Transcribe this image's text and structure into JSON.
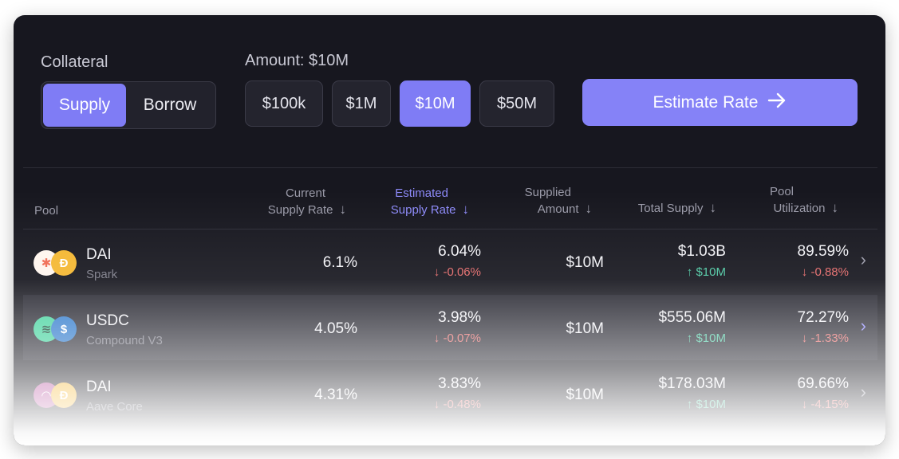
{
  "collateral": {
    "label": "Collateral",
    "options": [
      "Supply",
      "Borrow"
    ],
    "selected": "Supply"
  },
  "amount": {
    "label": "Amount: $10M",
    "options": [
      "$100k",
      "$1M",
      "$10M",
      "$50M"
    ],
    "selected": "$10M"
  },
  "estimate_button": {
    "label": "Estimate Rate",
    "icon": "arrow-right-icon"
  },
  "table": {
    "headers": {
      "pool": "Pool",
      "current_line1": "Current",
      "current_line2": "Supply Rate",
      "estimated_line1": "Estimated",
      "estimated_line2": "Supply Rate",
      "supplied_line1": "Supplied",
      "supplied_line2": "Amount",
      "total_supply": "Total Supply",
      "util_line1": "Pool",
      "util_line2": "Utilization",
      "sort_arrow": "↓"
    },
    "rows": [
      {
        "asset": "DAI",
        "protocol": "Spark",
        "current_rate": "6.1%",
        "estimated_rate": "6.04%",
        "estimated_delta": "↓ -0.06%",
        "supplied": "$10M",
        "total_supply": "$1.03B",
        "total_supply_delta": "↑ $10M",
        "utilization": "89.59%",
        "utilization_delta": "↓ -0.88%",
        "icons": [
          "spark-icon",
          "dai-icon"
        ]
      },
      {
        "asset": "USDC",
        "protocol": "Compound V3",
        "current_rate": "4.05%",
        "estimated_rate": "3.98%",
        "estimated_delta": "↓ -0.07%",
        "supplied": "$10M",
        "total_supply": "$555.06M",
        "total_supply_delta": "↑ $10M",
        "utilization": "72.27%",
        "utilization_delta": "↓ -1.33%",
        "icons": [
          "compound-icon",
          "usdc-icon"
        ]
      },
      {
        "asset": "DAI",
        "protocol": "Aave Core",
        "current_rate": "4.31%",
        "estimated_rate": "3.83%",
        "estimated_delta": "↓ -0.48%",
        "supplied": "$10M",
        "total_supply": "$178.03M",
        "total_supply_delta": "↑ $10M",
        "utilization": "69.66%",
        "utilization_delta": "↓ -4.15%",
        "icons": [
          "aave-icon",
          "dai-icon"
        ]
      }
    ]
  },
  "colors": {
    "accent": "#7f7cf5",
    "background": "#17171f",
    "negative": "#e46a6a",
    "positive": "#4fc9a4"
  }
}
